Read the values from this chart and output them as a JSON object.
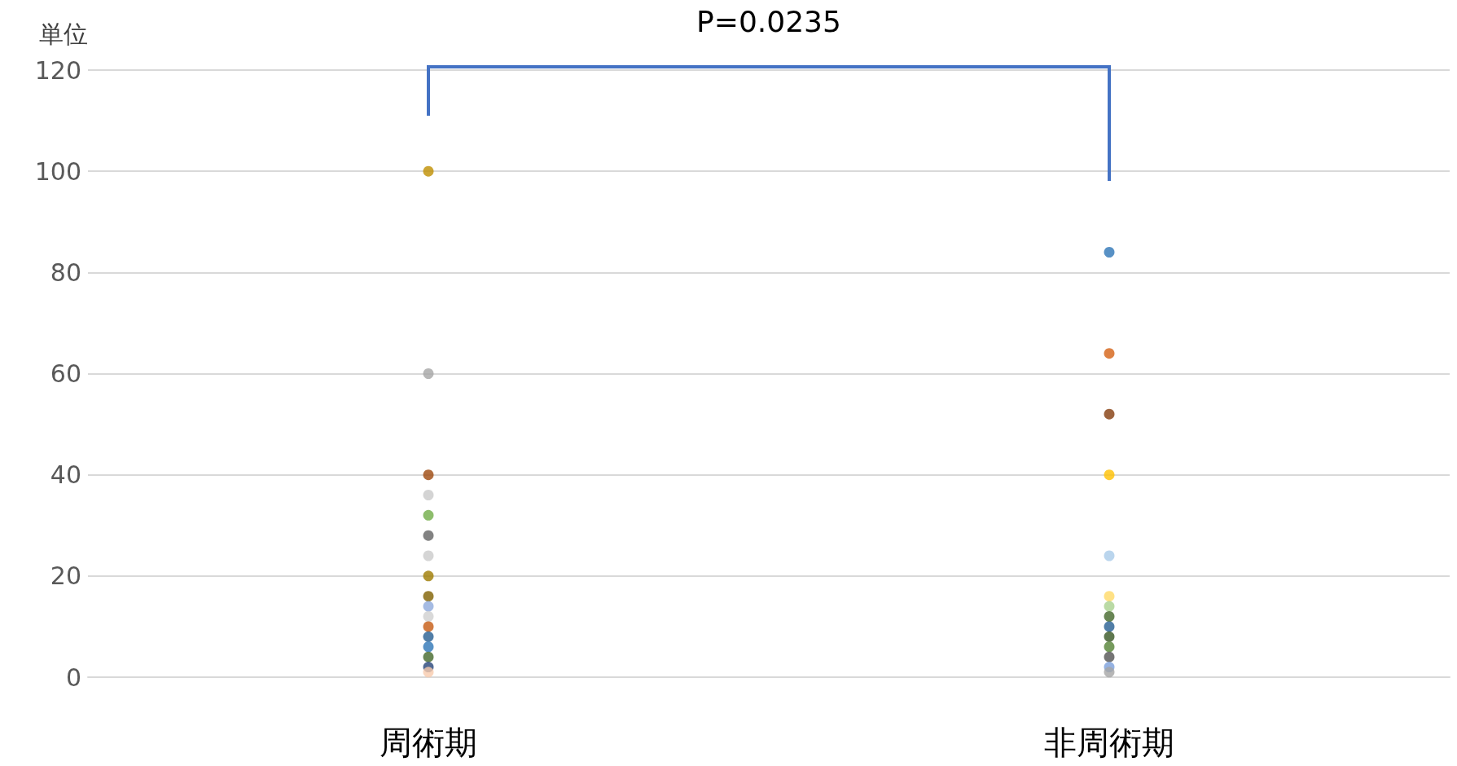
{
  "chart_data": {
    "type": "scatter",
    "ylabel": "単位",
    "categories": [
      "周術期",
      "非周術期"
    ],
    "series": [
      {
        "x": [
          "周術期",
          "周術期",
          "周術期",
          "周術期",
          "周術期",
          "周術期",
          "周術期",
          "周術期",
          "周術期",
          "周術期",
          "周術期",
          "周術期",
          "周術期",
          "周術期",
          "周術期",
          "周術期",
          "周術期"
        ],
        "values": [
          100,
          60,
          40,
          36,
          32,
          28,
          24,
          20,
          16,
          14,
          12,
          10,
          8,
          6,
          4,
          2,
          1
        ],
        "colors": [
          "#bf8f00",
          "#a5a5a5",
          "#9e480e",
          "#c9c9c9",
          "#70ad47",
          "#636363",
          "#cbcbcb",
          "#9e7b00",
          "#7f6000",
          "#8faadc",
          "#d0d0d0",
          "#c55a11",
          "#255e91",
          "#2e75b6",
          "#43682b",
          "#264478",
          "#f8cbad"
        ]
      },
      {
        "x": [
          "非周術期",
          "非周術期",
          "非周術期",
          "非周術期",
          "非周術期",
          "非周術期",
          "非周術期",
          "非周術期",
          "非周術期",
          "非周術期",
          "非周術期",
          "非周術期",
          "非周術期",
          "非周術期"
        ],
        "values": [
          84,
          64,
          52,
          40,
          24,
          16,
          14,
          12,
          10,
          8,
          6,
          4,
          2,
          1
        ],
        "colors": [
          "#2e75b6",
          "#d56114",
          "#843c0c",
          "#ffc000",
          "#a9cbe9",
          "#ffd966",
          "#a9d18e",
          "#43682b",
          "#255e91",
          "#375623",
          "#548235",
          "#525252",
          "#7b9fdb",
          "#a5a5a5"
        ]
      }
    ],
    "ylim": [
      0,
      120
    ],
    "yticks": [
      0,
      20,
      40,
      60,
      80,
      100,
      120
    ],
    "grid": "y",
    "marker": "circle",
    "annotations": [
      "P=0.0235"
    ]
  }
}
